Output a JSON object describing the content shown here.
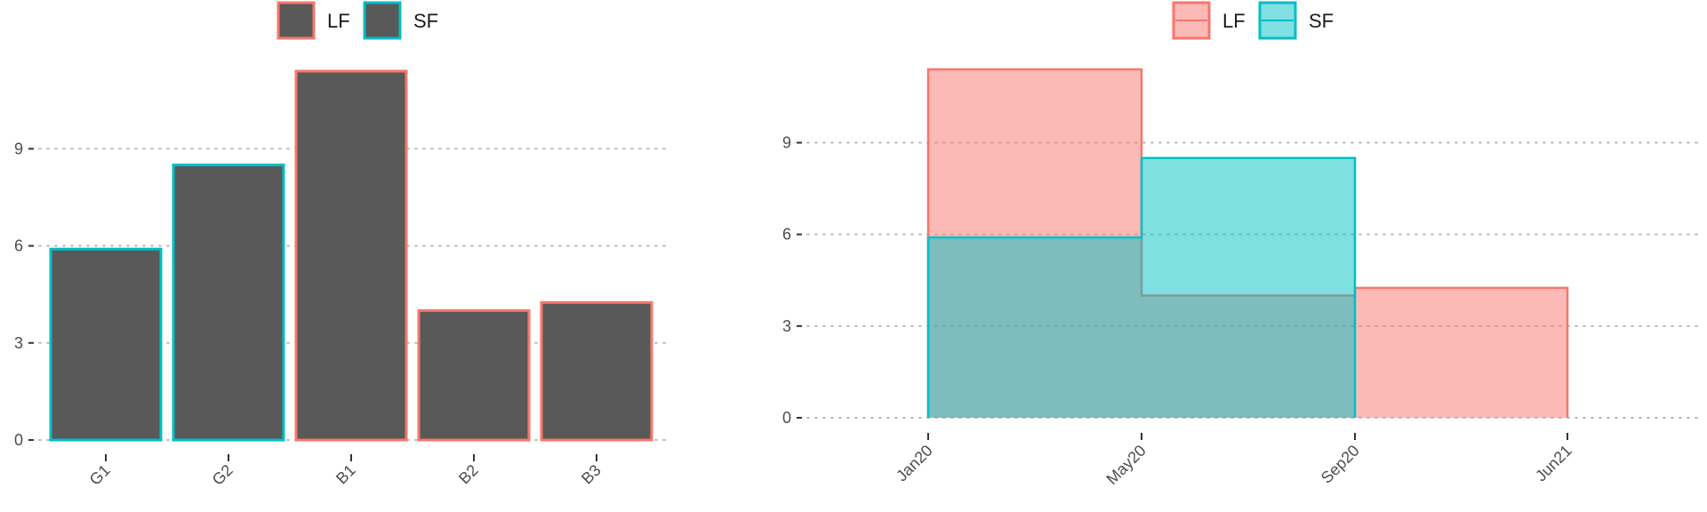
{
  "chart_data": [
    {
      "type": "bar",
      "categories": [
        "G1",
        "G2",
        "B1",
        "B2",
        "B3"
      ],
      "values": [
        5.9,
        8.5,
        11.4,
        4.0,
        4.25
      ],
      "groups": [
        "SF",
        "SF",
        "LF",
        "LF",
        "LF"
      ],
      "fill_color": "#595959",
      "ylim": [
        0,
        11.4
      ],
      "yticks": [
        0,
        3,
        6,
        9
      ],
      "grid": "horizontal dotted",
      "legend": {
        "position": "top",
        "entries": [
          {
            "label": "LF",
            "color": "#F8766D"
          },
          {
            "label": "SF",
            "color": "#00BFC4"
          }
        ]
      }
    },
    {
      "type": "area",
      "step": true,
      "x_ticks": [
        "Jan20",
        "May20",
        "Sep20",
        "Jun21"
      ],
      "series": [
        {
          "name": "LF",
          "color": "#F8766D",
          "fill": "#F8766D",
          "segments": [
            {
              "start": "Jan20",
              "end": "May20",
              "value": 11.4
            },
            {
              "start": "May20",
              "end": "Sep20",
              "value": 4.0
            },
            {
              "start": "Sep20",
              "end": "Jun21",
              "value": 4.25
            }
          ]
        },
        {
          "name": "SF",
          "color": "#00BFC4",
          "fill": "#00BFC4",
          "segments": [
            {
              "start": "Jan20",
              "end": "May20",
              "value": 5.9
            },
            {
              "start": "May20",
              "end": "Sep20",
              "value": 8.5
            }
          ]
        }
      ],
      "ylim": [
        0,
        11.4
      ],
      "yticks": [
        0,
        3,
        6,
        9
      ],
      "grid": "horizontal dotted",
      "legend": {
        "position": "top",
        "entries": [
          {
            "label": "LF",
            "color": "#F8766D"
          },
          {
            "label": "SF",
            "color": "#00BFC4"
          }
        ]
      }
    }
  ]
}
